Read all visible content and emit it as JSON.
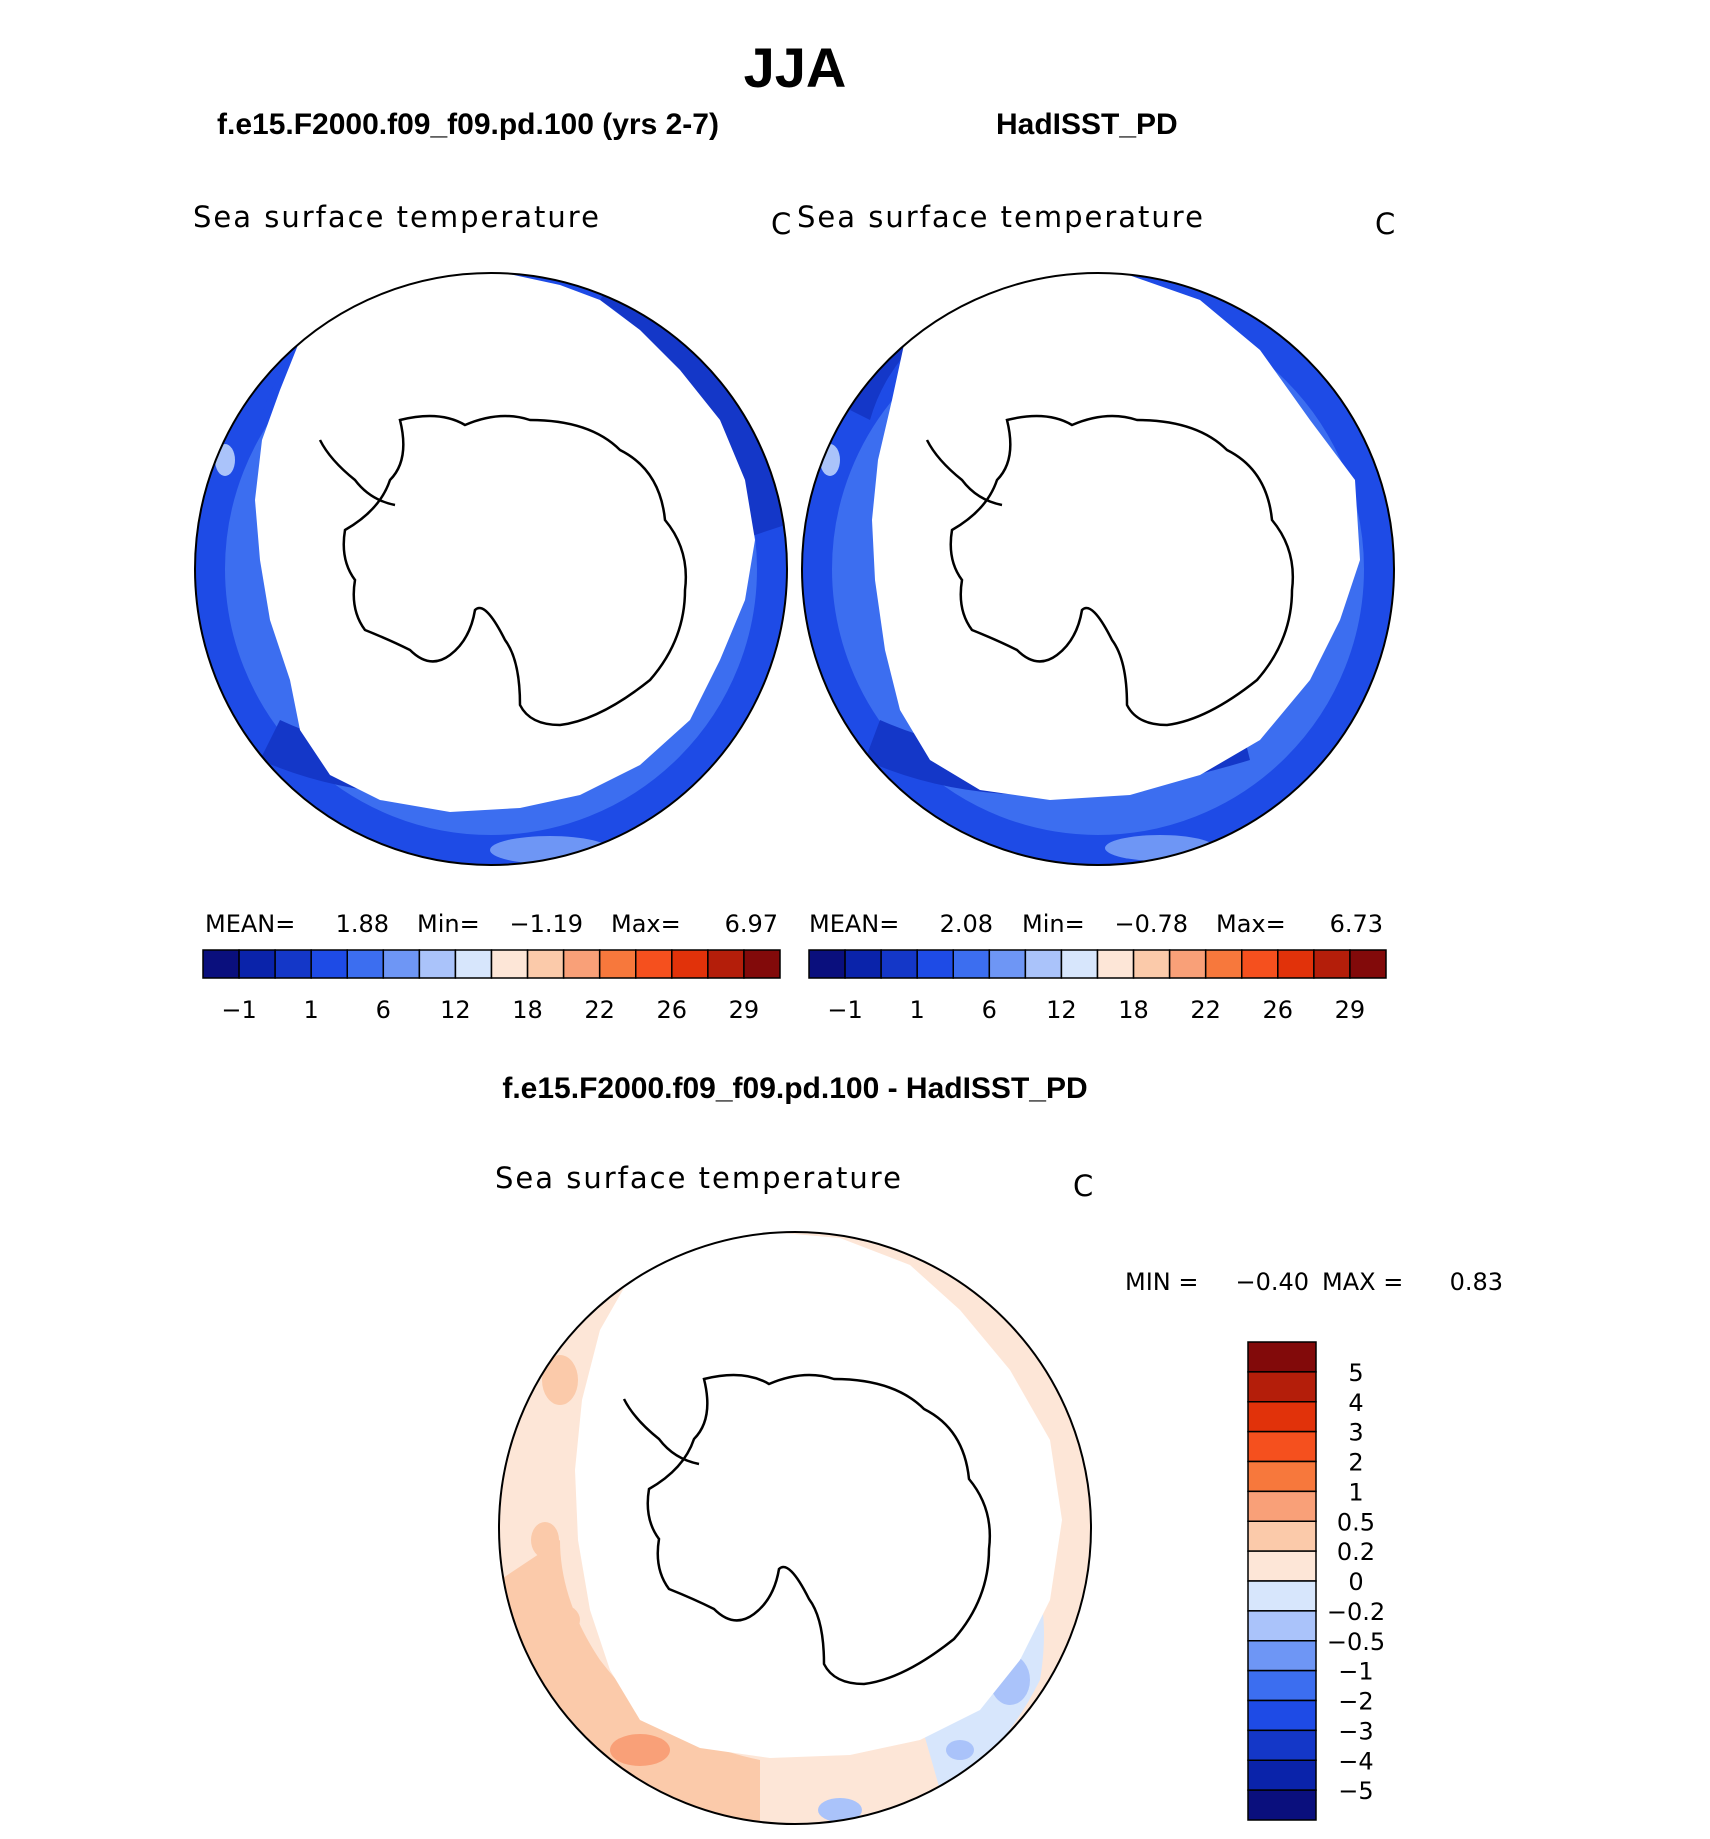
{
  "title": "JJA",
  "panels": [
    {
      "case_title": "f.e15.F2000.f09_f09.pd.100 (yrs 2-7)",
      "variable": "Sea surface temperature",
      "units": "C",
      "stats": {
        "mean_label": "MEAN=",
        "mean": "1.88",
        "min_label": "Min=",
        "min": "−1.19",
        "max_label": "Max=",
        "max": "6.97"
      }
    },
    {
      "case_title": "HadISST_PD",
      "variable": "Sea surface temperature",
      "units": "C",
      "stats": {
        "mean_label": "MEAN=",
        "mean": "2.08",
        "min_label": "Min=",
        "min": "−0.78",
        "max_label": "Max=",
        "max": "6.73"
      }
    }
  ],
  "diff_panel": {
    "case_title": "f.e15.F2000.f09_f09.pd.100 - HadISST_PD",
    "variable": "Sea surface temperature",
    "units": "C",
    "min_label": "MIN =",
    "min": "−0.40",
    "max_label": "MAX =",
    "max": "0.83"
  },
  "colorbar_main": {
    "colors": [
      "#0a0f7d",
      "#0a23aa",
      "#1437c8",
      "#1e4be6",
      "#3c6ef0",
      "#6e96f5",
      "#aac3fa",
      "#d7e6fc",
      "#fde6d7",
      "#fbcaaa",
      "#f9a078",
      "#f7783c",
      "#f5501e",
      "#e1320a",
      "#b41e0a",
      "#820a0a"
    ],
    "labels": [
      "−1",
      "1",
      "6",
      "12",
      "18",
      "22",
      "26",
      "29"
    ]
  },
  "colorbar_diff": {
    "colors": [
      "#0a0f7d",
      "#0a23aa",
      "#1437c8",
      "#1e4be6",
      "#3c6ef0",
      "#6e96f5",
      "#aac3fa",
      "#d7e6fc",
      "#fde6d7",
      "#fbcaaa",
      "#f9a078",
      "#f7783c",
      "#f5501e",
      "#e1320a",
      "#b41e0a",
      "#820a0a"
    ],
    "labels": [
      "5",
      "4",
      "3",
      "2",
      "1",
      "0.5",
      "0.2",
      "0",
      "−0.2",
      "−0.5",
      "−1",
      "−2",
      "−3",
      "−4",
      "−5"
    ]
  }
}
